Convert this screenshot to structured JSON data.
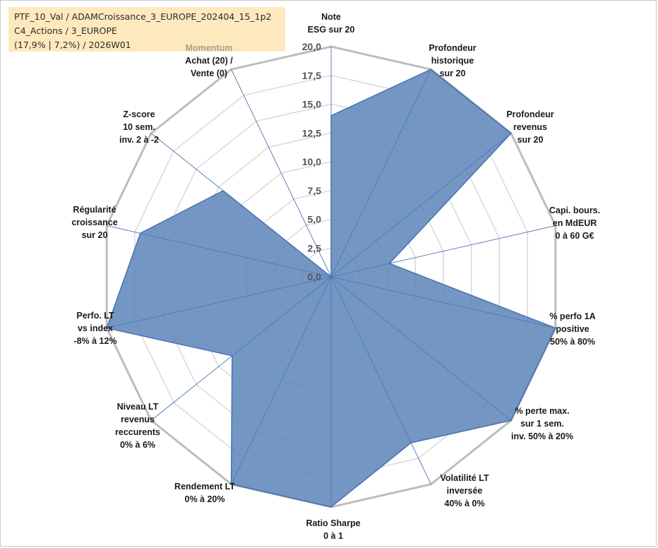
{
  "header": {
    "line1": "PTF_10_Val / ADAMCroissance_3_EUROPE_202404_15_1p2",
    "line2": "C4_Actions / 3_EUROPE",
    "line3": "(17,9% | 7,2%) / 2026W01"
  },
  "colors": {
    "fill": "#5b84b8",
    "stroke": "#4a72b0",
    "grid": "#d9d9d9",
    "outer_grid": "#bdbdbd",
    "momentum_label": "#a89f8c"
  },
  "chart_data": {
    "type": "radar",
    "rlim": [
      0,
      20
    ],
    "ticks": [
      "0,0",
      "2,5",
      "5,0",
      "7,5",
      "10,0",
      "12,5",
      "15,0",
      "17,5",
      "20,0"
    ],
    "categories": [
      [
        "Note",
        "ESG sur 20"
      ],
      [
        "Profondeur",
        "historique",
        "sur 20"
      ],
      [
        "Profondeur",
        "revenus",
        "sur 20"
      ],
      [
        "Capi. bours.",
        "en MdEUR",
        "0 à 60 G€"
      ],
      [
        "% perfo 1A",
        "positive",
        "50% à 80%"
      ],
      [
        "% perte max.",
        "sur 1 sem.",
        "inv. 50% à 20%"
      ],
      [
        "Volatilité LT",
        "inversée",
        "40% à 0%"
      ],
      [
        "Ratio Sharpe",
        "0 à 1"
      ],
      [
        "Rendement LT",
        "0% à 20%"
      ],
      [
        "Niveau LT",
        "revenus",
        "reccurents",
        "0% à 6%"
      ],
      [
        "Perfo. LT",
        "vs index",
        "-8% à 12%"
      ],
      [
        "Régularité",
        "croissance",
        "sur 20"
      ],
      [
        "Z-score",
        "10 sem.",
        "inv. 2 à -2"
      ],
      [
        "Momentum",
        "Achat (20) /",
        "Vente (0)"
      ]
    ],
    "series": [
      {
        "values": [
          14,
          20,
          20,
          5.2,
          20,
          20,
          16,
          20,
          20,
          11,
          20,
          17,
          12,
          0
        ]
      }
    ],
    "grid": true
  }
}
